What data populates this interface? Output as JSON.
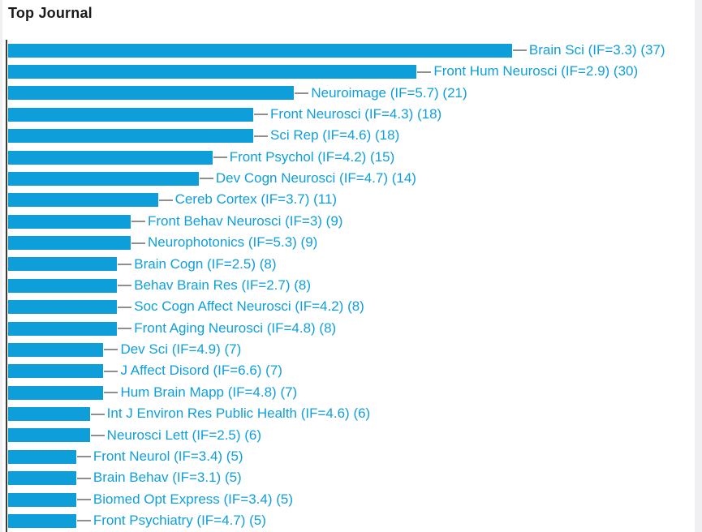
{
  "page": {
    "title": "Top Journal"
  },
  "chart_data": {
    "type": "bar",
    "orientation": "horizontal",
    "title": "Top Journal",
    "xlabel": "",
    "ylabel": "",
    "xlim": [
      0,
      37
    ],
    "grid": false,
    "legend": "none",
    "label_format": "Journal (IF=impact_factor) (count)",
    "categories": [
      "Brain Sci",
      "Front Hum Neurosci",
      "Neuroimage",
      "Front Neurosci",
      "Sci Rep",
      "Front Psychol",
      "Dev Cogn Neurosci",
      "Cereb Cortex",
      "Front Behav Neurosci",
      "Neurophotonics",
      "Brain Cogn",
      "Behav Brain Res",
      "Soc Cogn Affect Neurosci",
      "Front Aging Neurosci",
      "Dev Sci",
      "J Affect Disord",
      "Hum Brain Mapp",
      "Int J Environ Res Public Health",
      "Neurosci Lett",
      "Front Neurol",
      "Brain Behav",
      "Biomed Opt Express",
      "Front Psychiatry"
    ],
    "values": [
      37,
      30,
      21,
      18,
      18,
      15,
      14,
      11,
      9,
      9,
      8,
      8,
      8,
      8,
      7,
      7,
      7,
      6,
      6,
      5,
      5,
      5,
      5
    ],
    "items": [
      {
        "journal": "Brain Sci",
        "impact_factor": "3.3",
        "count": 37,
        "label": "Brain Sci (IF=3.3) (37)"
      },
      {
        "journal": "Front Hum Neurosci",
        "impact_factor": "2.9",
        "count": 30,
        "label": "Front Hum Neurosci (IF=2.9) (30)"
      },
      {
        "journal": "Neuroimage",
        "impact_factor": "5.7",
        "count": 21,
        "label": "Neuroimage (IF=5.7) (21)"
      },
      {
        "journal": "Front Neurosci",
        "impact_factor": "4.3",
        "count": 18,
        "label": "Front Neurosci (IF=4.3) (18)"
      },
      {
        "journal": "Sci Rep",
        "impact_factor": "4.6",
        "count": 18,
        "label": "Sci Rep (IF=4.6) (18)"
      },
      {
        "journal": "Front Psychol",
        "impact_factor": "4.2",
        "count": 15,
        "label": "Front Psychol (IF=4.2) (15)"
      },
      {
        "journal": "Dev Cogn Neurosci",
        "impact_factor": "4.7",
        "count": 14,
        "label": "Dev Cogn Neurosci (IF=4.7) (14)"
      },
      {
        "journal": "Cereb Cortex",
        "impact_factor": "3.7",
        "count": 11,
        "label": "Cereb Cortex (IF=3.7) (11)"
      },
      {
        "journal": "Front Behav Neurosci",
        "impact_factor": "3",
        "count": 9,
        "label": "Front Behav Neurosci (IF=3) (9)"
      },
      {
        "journal": "Neurophotonics",
        "impact_factor": "5.3",
        "count": 9,
        "label": "Neurophotonics (IF=5.3) (9)"
      },
      {
        "journal": "Brain Cogn",
        "impact_factor": "2.5",
        "count": 8,
        "label": "Brain Cogn (IF=2.5) (8)"
      },
      {
        "journal": "Behav Brain Res",
        "impact_factor": "2.7",
        "count": 8,
        "label": "Behav Brain Res (IF=2.7) (8)"
      },
      {
        "journal": "Soc Cogn Affect Neurosci",
        "impact_factor": "4.2",
        "count": 8,
        "label": "Soc Cogn Affect Neurosci (IF=4.2) (8)"
      },
      {
        "journal": "Front Aging Neurosci",
        "impact_factor": "4.8",
        "count": 8,
        "label": "Front Aging Neurosci (IF=4.8) (8)"
      },
      {
        "journal": "Dev Sci",
        "impact_factor": "4.9",
        "count": 7,
        "label": "Dev Sci (IF=4.9) (7)"
      },
      {
        "journal": "J Affect Disord",
        "impact_factor": "6.6",
        "count": 7,
        "label": "J Affect Disord (IF=6.6) (7)"
      },
      {
        "journal": "Hum Brain Mapp",
        "impact_factor": "4.8",
        "count": 7,
        "label": "Hum Brain Mapp (IF=4.8) (7)"
      },
      {
        "journal": "Int J Environ Res Public Health",
        "impact_factor": "4.6",
        "count": 6,
        "label": "Int J Environ Res Public Health (IF=4.6) (6)"
      },
      {
        "journal": "Neurosci Lett",
        "impact_factor": "2.5",
        "count": 6,
        "label": "Neurosci Lett (IF=2.5) (6)"
      },
      {
        "journal": "Front Neurol",
        "impact_factor": "3.4",
        "count": 5,
        "label": "Front Neurol (IF=3.4) (5)"
      },
      {
        "journal": "Brain Behav",
        "impact_factor": "3.1",
        "count": 5,
        "label": "Brain Behav (IF=3.1) (5)"
      },
      {
        "journal": "Biomed Opt Express",
        "impact_factor": "3.4",
        "count": 5,
        "label": "Biomed Opt Express (IF=3.4) (5)"
      },
      {
        "journal": "Front Psychiatry",
        "impact_factor": "4.7",
        "count": 5,
        "label": "Front Psychiatry (IF=4.7) (5)"
      }
    ],
    "colors": {
      "bar": "#0E9FDB",
      "label": "#0E9FDB",
      "connector": "#8F8F8F",
      "axis": "#3D3D3D",
      "title": "#1A1A1A",
      "chart_background": "#FFFFFF",
      "page_background": "#F0F0F2"
    }
  }
}
